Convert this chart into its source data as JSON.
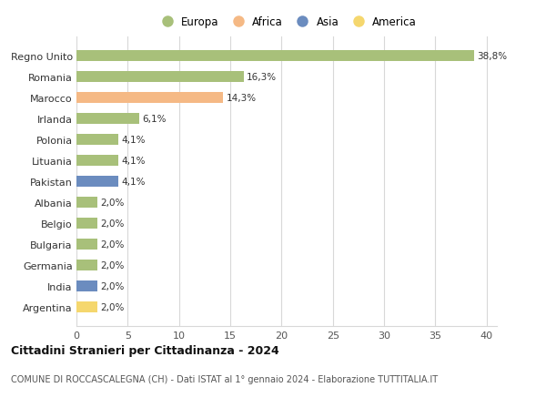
{
  "countries": [
    "Regno Unito",
    "Romania",
    "Marocco",
    "Irlanda",
    "Polonia",
    "Lituania",
    "Pakistan",
    "Albania",
    "Belgio",
    "Bulgaria",
    "Germania",
    "India",
    "Argentina"
  ],
  "values": [
    38.8,
    16.3,
    14.3,
    6.1,
    4.1,
    4.1,
    4.1,
    2.0,
    2.0,
    2.0,
    2.0,
    2.0,
    2.0
  ],
  "labels": [
    "38,8%",
    "16,3%",
    "14,3%",
    "6,1%",
    "4,1%",
    "4,1%",
    "4,1%",
    "2,0%",
    "2,0%",
    "2,0%",
    "2,0%",
    "2,0%",
    "2,0%"
  ],
  "colors": [
    "#a8c07a",
    "#a8c07a",
    "#f5b985",
    "#a8c07a",
    "#a8c07a",
    "#a8c07a",
    "#6b8cbf",
    "#a8c07a",
    "#a8c07a",
    "#a8c07a",
    "#a8c07a",
    "#6b8cbf",
    "#f5d76e"
  ],
  "legend_labels": [
    "Europa",
    "Africa",
    "Asia",
    "America"
  ],
  "legend_colors": [
    "#a8c07a",
    "#f5b985",
    "#6b8cbf",
    "#f5d76e"
  ],
  "title": "Cittadini Stranieri per Cittadinanza - 2024",
  "subtitle": "COMUNE DI ROCCASCALEGNA (CH) - Dati ISTAT al 1° gennaio 2024 - Elaborazione TUTTITALIA.IT",
  "xlim": [
    0,
    41
  ],
  "xticks": [
    0,
    5,
    10,
    15,
    20,
    25,
    30,
    35,
    40
  ],
  "background_color": "#ffffff",
  "grid_color": "#d8d8d8"
}
